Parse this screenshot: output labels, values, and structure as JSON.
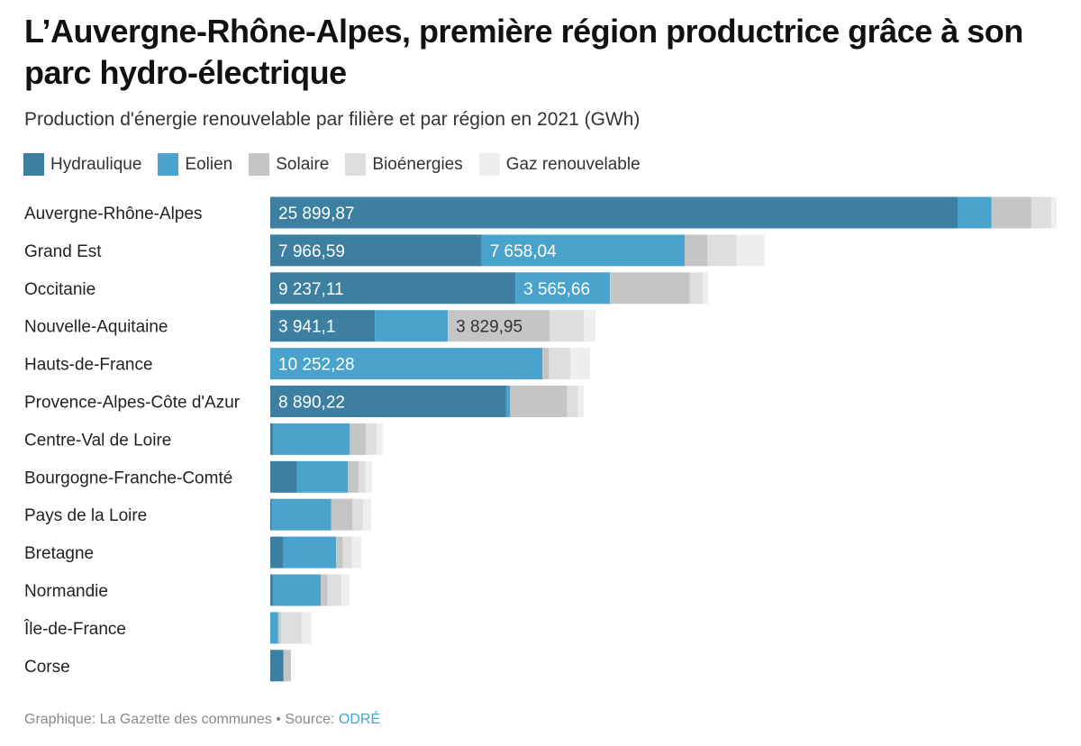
{
  "title": "L’Auvergne-Rhône-Alpes, première région productrice grâce à son parc hydro-électrique",
  "subtitle": "Production d'énergie renouvelable par filière et par région en 2021 (GWh)",
  "footer": {
    "credit": "Graphique: La Gazette des communes • Source: ",
    "source_link": "ODRÉ"
  },
  "colors": {
    "Hydraulique": "#3c7fa0",
    "Eolien": "#4aa3cc",
    "Solaire": "#c5c5c5",
    "Bioénergies": "#dedede",
    "Gaz renouvelable": "#eeeeee"
  },
  "chart_data": {
    "type": "bar",
    "orientation": "horizontal",
    "stacked": true,
    "unit": "GWh",
    "legend_position": "top-left",
    "grid": false,
    "categories": [
      "Auvergne-Rhône-Alpes",
      "Grand Est",
      "Occitanie",
      "Nouvelle-Aquitaine",
      "Hauts-de-France",
      "Provence-Alpes-Côte d'Azur",
      "Centre-Val de Loire",
      "Bourgogne-Franche-Comté",
      "Pays de la Loire",
      "Bretagne",
      "Normandie",
      "Île-de-France",
      "Corse"
    ],
    "series": [
      {
        "name": "Hydraulique",
        "values": [
          25899.87,
          7966.59,
          9237.11,
          3941.1,
          0,
          8890.22,
          100,
          1000,
          50,
          500,
          100,
          0,
          500
        ],
        "labels": [
          "25 899,87",
          "7 966,59",
          "9 237,11",
          "3 941,1",
          "",
          "8 890,22",
          "",
          "",
          "",
          "",
          "",
          "",
          ""
        ]
      },
      {
        "name": "Eolien",
        "values": [
          1280,
          7658.04,
          3565.66,
          2750,
          10252.28,
          150,
          2900,
          1930,
          2250,
          1980,
          1800,
          300,
          0
        ],
        "labels": [
          "",
          "7 658,04",
          "3 565,66",
          "",
          "10 252,28",
          "",
          "",
          "",
          "",
          "",
          "",
          "",
          ""
        ]
      },
      {
        "name": "Solaire",
        "values": [
          1500,
          850,
          3000,
          3829.95,
          250,
          2150,
          600,
          400,
          800,
          250,
          260,
          100,
          280
        ],
        "labels": [
          "",
          "",
          "",
          "3 829,95",
          "",
          "",
          "",
          "",
          "",
          "",
          "",
          "",
          ""
        ]
      },
      {
        "name": "Bioénergies",
        "values": [
          750,
          1100,
          500,
          1300,
          800,
          400,
          400,
          250,
          400,
          350,
          530,
          800,
          0
        ],
        "labels": [
          "",
          "",
          "",
          "",
          "",
          "",
          "",
          "",
          "",
          "",
          "",
          "",
          ""
        ]
      },
      {
        "name": "Gaz renouvelable",
        "values": [
          200,
          1050,
          200,
          430,
          750,
          220,
          250,
          250,
          300,
          350,
          300,
          350,
          0
        ],
        "labels": [
          "",
          "",
          "",
          "",
          "",
          "",
          "",
          "",
          "",
          "",
          "",
          "",
          ""
        ]
      }
    ],
    "xlim": [
      0,
      29600
    ]
  }
}
